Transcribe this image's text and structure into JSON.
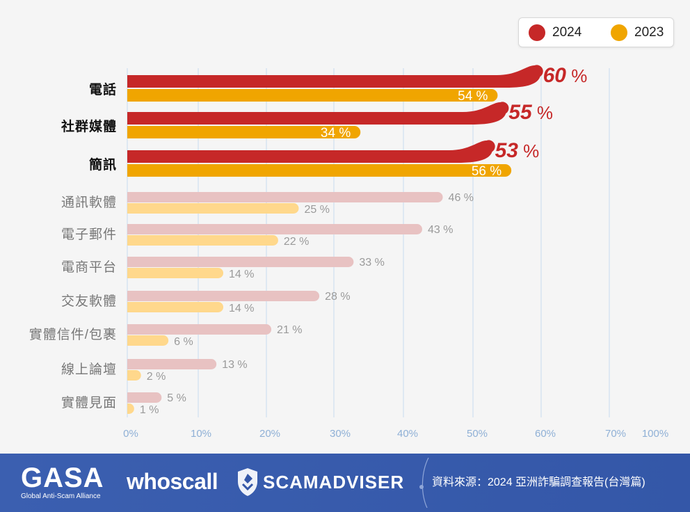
{
  "chart_data": {
    "type": "bar",
    "orientation": "horizontal",
    "categories": [
      "電話",
      "社群媒體",
      "簡訊",
      "通訊軟體",
      "電子郵件",
      "電商平台",
      "交友軟體",
      "實體信件/包裹",
      "線上論壇",
      "實體見面"
    ],
    "series": [
      {
        "name": "2024",
        "color": "#c62828",
        "values": [
          60,
          55,
          53,
          46,
          43,
          33,
          28,
          21,
          13,
          5
        ]
      },
      {
        "name": "2023",
        "color": "#f0a500",
        "values": [
          54,
          34,
          56,
          25,
          22,
          14,
          14,
          6,
          2,
          1
        ]
      }
    ],
    "highlight_count": 3,
    "faded_colors": {
      "2024": "#e8c2c2",
      "2023": "#ffd88c"
    },
    "unit_suffix": " %",
    "x_ticks": [
      "0%",
      "10%",
      "20%",
      "30%",
      "40%",
      "50%",
      "60%",
      "70%",
      "100%"
    ],
    "xlim": [
      0,
      70
    ],
    "grid": true
  },
  "legend": {
    "items": [
      {
        "label": "2024",
        "color": "#c62828"
      },
      {
        "label": "2023",
        "color": "#f0a500"
      }
    ]
  },
  "footer": {
    "gasa_logo": "GASA",
    "gasa_subtitle": "Global Anti-Scam Alliance",
    "whoscall_logo": "whoscall",
    "scamadviser_logo": "SCAMADVISER",
    "source": "資料來源：2024 亞洲詐騙調查報告(台灣篇)"
  }
}
